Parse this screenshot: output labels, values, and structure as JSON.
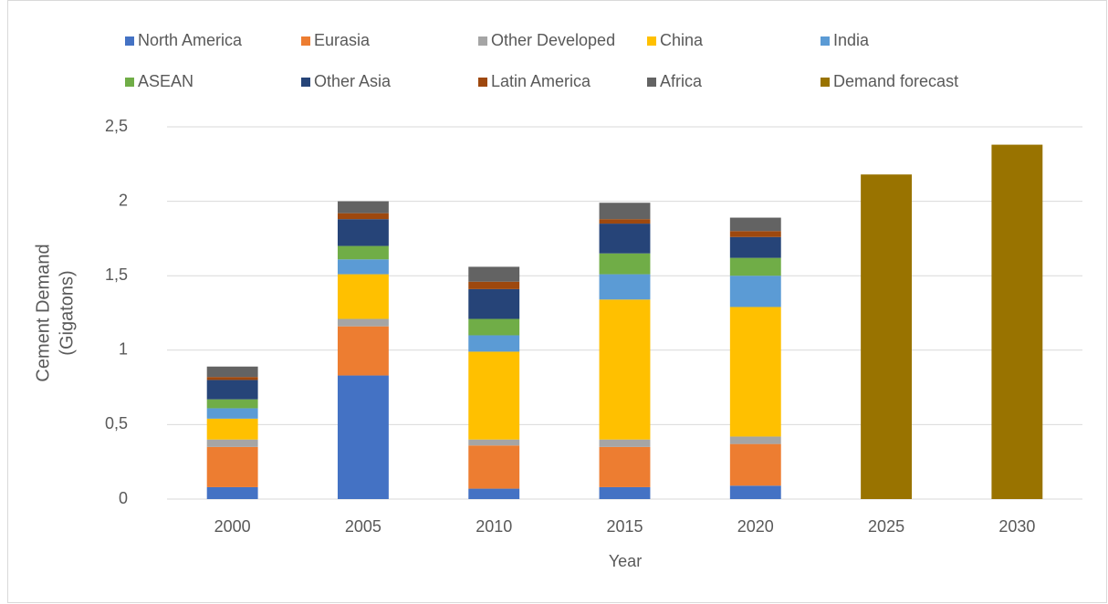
{
  "chart_data": {
    "type": "stacked_bar",
    "x_label": "Year",
    "y_label": [
      "Cement Demand",
      "(Gigatons)"
    ],
    "categories": [
      "2000",
      "2005",
      "2010",
      "2015",
      "2020",
      "2025",
      "2030"
    ],
    "series": [
      {
        "name": "North America",
        "color": "#4472c4",
        "values": [
          0.08,
          0.83,
          0.07,
          0.08,
          0.09,
          null,
          null
        ]
      },
      {
        "name": "Eurasia",
        "color": "#ed7d31",
        "values": [
          0.27,
          0.33,
          0.29,
          0.27,
          0.28,
          null,
          null
        ]
      },
      {
        "name": "Other Developed",
        "color": "#a5a5a5",
        "values": [
          0.05,
          0.05,
          0.04,
          0.05,
          0.05,
          null,
          null
        ]
      },
      {
        "name": "China",
        "color": "#ffc000",
        "values": [
          0.14,
          0.3,
          0.59,
          0.94,
          0.87,
          null,
          null
        ]
      },
      {
        "name": "India",
        "color": "#5b9bd5",
        "values": [
          0.07,
          0.1,
          0.11,
          0.17,
          0.21,
          null,
          null
        ]
      },
      {
        "name": "ASEAN",
        "color": "#70ad47",
        "values": [
          0.06,
          0.09,
          0.11,
          0.14,
          0.12,
          null,
          null
        ]
      },
      {
        "name": "Other Asia",
        "color": "#264478",
        "values": [
          0.13,
          0.18,
          0.2,
          0.2,
          0.14,
          null,
          null
        ]
      },
      {
        "name": "Latin America",
        "color": "#9e480e",
        "values": [
          0.02,
          0.04,
          0.05,
          0.03,
          0.04,
          null,
          null
        ]
      },
      {
        "name": "Africa",
        "color": "#636363",
        "values": [
          0.07,
          0.08,
          0.1,
          0.11,
          0.09,
          null,
          null
        ]
      },
      {
        "name": "Demand forecast",
        "color": "#997300",
        "values": [
          null,
          null,
          null,
          null,
          null,
          2.18,
          2.38
        ]
      }
    ],
    "ylim": [
      0,
      2.5
    ],
    "yticks": [
      0,
      {
        "value": 0.5,
        "label": "0,5"
      },
      1,
      {
        "value": 1.5,
        "label": "1,5"
      },
      2,
      {
        "value": 2.5,
        "label": "2,5"
      }
    ],
    "grid": true
  }
}
